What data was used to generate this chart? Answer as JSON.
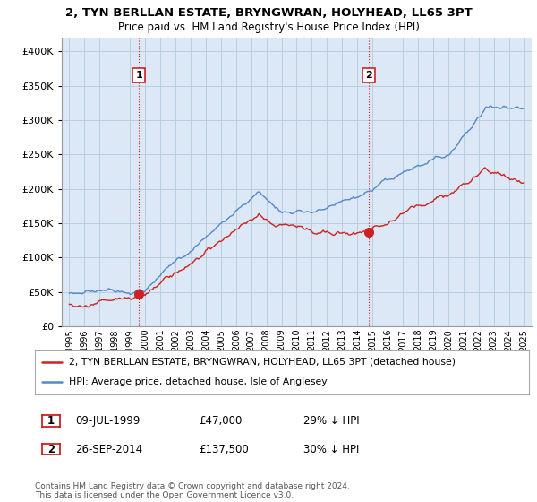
{
  "title": "2, TYN BERLLAN ESTATE, BRYNGWRAN, HOLYHEAD, LL65 3PT",
  "subtitle": "Price paid vs. HM Land Registry's House Price Index (HPI)",
  "ylim": [
    0,
    420000
  ],
  "yticks": [
    0,
    50000,
    100000,
    150000,
    200000,
    250000,
    300000,
    350000,
    400000
  ],
  "background_color": "#dce8f5",
  "grid_color": "#b8cfe0",
  "hpi_color": "#5588cc",
  "price_color": "#cc2222",
  "legend_label_price": "2, TYN BERLLAN ESTATE, BRYNGWRAN, HOLYHEAD, LL65 3PT (detached house)",
  "legend_label_hpi": "HPI: Average price, detached house, Isle of Anglesey",
  "note1_date": "09-JUL-1999",
  "note1_price": "£47,000",
  "note1_hpi": "29% ↓ HPI",
  "note2_date": "26-SEP-2014",
  "note2_price": "£137,500",
  "note2_hpi": "30% ↓ HPI",
  "footnote": "Contains HM Land Registry data © Crown copyright and database right 2024.\nThis data is licensed under the Open Government Licence v3.0.",
  "sale1_year": 1999.583,
  "sale1_price": 47000,
  "sale2_year": 2014.75,
  "sale2_price": 137500
}
